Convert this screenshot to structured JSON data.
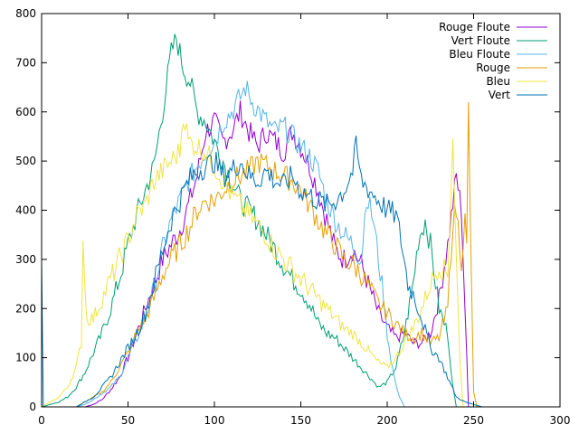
{
  "chart_data": {
    "type": "line",
    "title": "",
    "xlabel": "",
    "ylabel": "",
    "xlim": [
      0,
      300
    ],
    "ylim": [
      0,
      800
    ],
    "xticks": [
      0,
      50,
      100,
      150,
      200,
      250,
      300
    ],
    "yticks": [
      0,
      100,
      200,
      300,
      400,
      500,
      600,
      700,
      800
    ],
    "grid": false,
    "legend_position": "top-right",
    "series": [
      {
        "name": "Rouge Floute",
        "color": "#9400d3",
        "points": [
          [
            0,
            0
          ],
          [
            25,
            0
          ],
          [
            30,
            5
          ],
          [
            35,
            15
          ],
          [
            40,
            35
          ],
          [
            45,
            60
          ],
          [
            50,
            100
          ],
          [
            55,
            150
          ],
          [
            60,
            200
          ],
          [
            65,
            250
          ],
          [
            70,
            300
          ],
          [
            75,
            330
          ],
          [
            80,
            360
          ],
          [
            85,
            410
          ],
          [
            90,
            470
          ],
          [
            95,
            560
          ],
          [
            100,
            580
          ],
          [
            105,
            540
          ],
          [
            110,
            560
          ],
          [
            115,
            600
          ],
          [
            120,
            560
          ],
          [
            125,
            530
          ],
          [
            130,
            560
          ],
          [
            135,
            540
          ],
          [
            140,
            520
          ],
          [
            145,
            560
          ],
          [
            150,
            530
          ],
          [
            155,
            490
          ],
          [
            160,
            440
          ],
          [
            165,
            380
          ],
          [
            170,
            320
          ],
          [
            175,
            300
          ],
          [
            180,
            320
          ],
          [
            185,
            290
          ],
          [
            190,
            240
          ],
          [
            195,
            190
          ],
          [
            200,
            160
          ],
          [
            205,
            140
          ],
          [
            210,
            150
          ],
          [
            215,
            130
          ],
          [
            220,
            130
          ],
          [
            225,
            150
          ],
          [
            230,
            220
          ],
          [
            235,
            330
          ],
          [
            240,
            470
          ],
          [
            243,
            400
          ],
          [
            245,
            200
          ],
          [
            247,
            0
          ],
          [
            300,
            0
          ]
        ]
      },
      {
        "name": "Vert Floute",
        "color": "#009e73",
        "points": [
          [
            0,
            0
          ],
          [
            5,
            5
          ],
          [
            10,
            10
          ],
          [
            15,
            20
          ],
          [
            20,
            40
          ],
          [
            25,
            70
          ],
          [
            30,
            110
          ],
          [
            35,
            150
          ],
          [
            40,
            200
          ],
          [
            45,
            260
          ],
          [
            50,
            330
          ],
          [
            55,
            390
          ],
          [
            60,
            440
          ],
          [
            65,
            490
          ],
          [
            70,
            600
          ],
          [
            75,
            720
          ],
          [
            78,
            750
          ],
          [
            82,
            690
          ],
          [
            86,
            660
          ],
          [
            90,
            600
          ],
          [
            95,
            580
          ],
          [
            100,
            540
          ],
          [
            105,
            500
          ],
          [
            110,
            460
          ],
          [
            115,
            420
          ],
          [
            120,
            400
          ],
          [
            125,
            380
          ],
          [
            130,
            350
          ],
          [
            135,
            320
          ],
          [
            140,
            290
          ],
          [
            145,
            260
          ],
          [
            150,
            240
          ],
          [
            155,
            210
          ],
          [
            160,
            170
          ],
          [
            165,
            150
          ],
          [
            170,
            140
          ],
          [
            175,
            120
          ],
          [
            180,
            100
          ],
          [
            185,
            80
          ],
          [
            190,
            60
          ],
          [
            195,
            40
          ],
          [
            200,
            50
          ],
          [
            205,
            80
          ],
          [
            210,
            150
          ],
          [
            215,
            250
          ],
          [
            218,
            340
          ],
          [
            222,
            380
          ],
          [
            225,
            330
          ],
          [
            230,
            200
          ],
          [
            235,
            150
          ],
          [
            238,
            40
          ],
          [
            240,
            0
          ],
          [
            300,
            0
          ]
        ]
      },
      {
        "name": "Bleu Floute",
        "color": "#56b4e9",
        "points": [
          [
            0,
            0
          ],
          [
            20,
            0
          ],
          [
            25,
            5
          ],
          [
            30,
            15
          ],
          [
            40,
            40
          ],
          [
            45,
            60
          ],
          [
            50,
            100
          ],
          [
            55,
            140
          ],
          [
            60,
            180
          ],
          [
            65,
            240
          ],
          [
            70,
            320
          ],
          [
            75,
            380
          ],
          [
            80,
            420
          ],
          [
            85,
            460
          ],
          [
            90,
            490
          ],
          [
            95,
            520
          ],
          [
            100,
            540
          ],
          [
            105,
            580
          ],
          [
            110,
            600
          ],
          [
            115,
            630
          ],
          [
            118,
            650
          ],
          [
            122,
            620
          ],
          [
            126,
            600
          ],
          [
            130,
            580
          ],
          [
            135,
            560
          ],
          [
            140,
            570
          ],
          [
            145,
            550
          ],
          [
            150,
            530
          ],
          [
            155,
            510
          ],
          [
            160,
            480
          ],
          [
            165,
            420
          ],
          [
            170,
            380
          ],
          [
            175,
            350
          ],
          [
            180,
            330
          ],
          [
            185,
            300
          ],
          [
            188,
            430
          ],
          [
            192,
            380
          ],
          [
            195,
            300
          ],
          [
            198,
            220
          ],
          [
            200,
            150
          ],
          [
            203,
            80
          ],
          [
            206,
            30
          ],
          [
            210,
            0
          ],
          [
            300,
            0
          ]
        ]
      },
      {
        "name": "Rouge",
        "color": "#e69f00",
        "points": [
          [
            0,
            0
          ],
          [
            20,
            0
          ],
          [
            25,
            10
          ],
          [
            30,
            20
          ],
          [
            35,
            30
          ],
          [
            40,
            50
          ],
          [
            45,
            80
          ],
          [
            50,
            110
          ],
          [
            55,
            150
          ],
          [
            60,
            180
          ],
          [
            65,
            220
          ],
          [
            70,
            270
          ],
          [
            75,
            300
          ],
          [
            80,
            330
          ],
          [
            85,
            360
          ],
          [
            90,
            400
          ],
          [
            95,
            420
          ],
          [
            100,
            420
          ],
          [
            105,
            440
          ],
          [
            110,
            460
          ],
          [
            115,
            470
          ],
          [
            120,
            480
          ],
          [
            125,
            500
          ],
          [
            130,
            490
          ],
          [
            135,
            480
          ],
          [
            140,
            470
          ],
          [
            145,
            460
          ],
          [
            150,
            440
          ],
          [
            155,
            410
          ],
          [
            160,
            380
          ],
          [
            165,
            350
          ],
          [
            170,
            330
          ],
          [
            175,
            300
          ],
          [
            180,
            290
          ],
          [
            185,
            270
          ],
          [
            190,
            240
          ],
          [
            195,
            210
          ],
          [
            200,
            190
          ],
          [
            205,
            170
          ],
          [
            210,
            150
          ],
          [
            215,
            140
          ],
          [
            220,
            150
          ],
          [
            225,
            130
          ],
          [
            230,
            140
          ],
          [
            235,
            200
          ],
          [
            238,
            380
          ],
          [
            240,
            400
          ],
          [
            243,
            300
          ],
          [
            245,
            380
          ],
          [
            246,
            320
          ],
          [
            247,
            610
          ],
          [
            249,
            200
          ],
          [
            250,
            30
          ],
          [
            252,
            0
          ],
          [
            300,
            0
          ]
        ]
      },
      {
        "name": "Bleu",
        "color": "#f0e442",
        "points": [
          [
            0,
            0
          ],
          [
            5,
            10
          ],
          [
            10,
            20
          ],
          [
            15,
            40
          ],
          [
            20,
            80
          ],
          [
            23,
            130
          ],
          [
            24,
            340
          ],
          [
            26,
            180
          ],
          [
            30,
            180
          ],
          [
            35,
            220
          ],
          [
            40,
            260
          ],
          [
            45,
            300
          ],
          [
            50,
            340
          ],
          [
            55,
            390
          ],
          [
            60,
            410
          ],
          [
            65,
            460
          ],
          [
            70,
            480
          ],
          [
            75,
            500
          ],
          [
            80,
            520
          ],
          [
            82,
            600
          ],
          [
            85,
            540
          ],
          [
            90,
            530
          ],
          [
            95,
            520
          ],
          [
            100,
            490
          ],
          [
            105,
            460
          ],
          [
            110,
            430
          ],
          [
            115,
            410
          ],
          [
            120,
            390
          ],
          [
            125,
            370
          ],
          [
            130,
            350
          ],
          [
            135,
            320
          ],
          [
            140,
            300
          ],
          [
            145,
            280
          ],
          [
            150,
            260
          ],
          [
            155,
            240
          ],
          [
            160,
            220
          ],
          [
            165,
            200
          ],
          [
            170,
            180
          ],
          [
            175,
            160
          ],
          [
            180,
            150
          ],
          [
            185,
            130
          ],
          [
            190,
            110
          ],
          [
            195,
            90
          ],
          [
            200,
            80
          ],
          [
            205,
            100
          ],
          [
            210,
            130
          ],
          [
            215,
            160
          ],
          [
            220,
            200
          ],
          [
            225,
            250
          ],
          [
            230,
            290
          ],
          [
            235,
            270
          ],
          [
            238,
            550
          ],
          [
            240,
            300
          ],
          [
            242,
            100
          ],
          [
            244,
            0
          ],
          [
            300,
            0
          ]
        ]
      },
      {
        "name": "Vert",
        "color": "#0072b2",
        "points": [
          [
            0,
            300
          ],
          [
            1,
            0
          ],
          [
            20,
            0
          ],
          [
            25,
            10
          ],
          [
            30,
            20
          ],
          [
            35,
            40
          ],
          [
            40,
            60
          ],
          [
            45,
            90
          ],
          [
            50,
            120
          ],
          [
            55,
            150
          ],
          [
            60,
            190
          ],
          [
            65,
            250
          ],
          [
            70,
            320
          ],
          [
            75,
            380
          ],
          [
            80,
            420
          ],
          [
            85,
            460
          ],
          [
            90,
            480
          ],
          [
            95,
            490
          ],
          [
            100,
            500
          ],
          [
            105,
            470
          ],
          [
            110,
            480
          ],
          [
            115,
            500
          ],
          [
            120,
            470
          ],
          [
            125,
            460
          ],
          [
            130,
            480
          ],
          [
            135,
            460
          ],
          [
            140,
            450
          ],
          [
            145,
            470
          ],
          [
            150,
            440
          ],
          [
            155,
            430
          ],
          [
            160,
            420
          ],
          [
            165,
            410
          ],
          [
            170,
            420
          ],
          [
            175,
            440
          ],
          [
            180,
            480
          ],
          [
            182,
            530
          ],
          [
            185,
            460
          ],
          [
            190,
            440
          ],
          [
            195,
            420
          ],
          [
            200,
            400
          ],
          [
            205,
            390
          ],
          [
            208,
            340
          ],
          [
            212,
            250
          ],
          [
            215,
            230
          ],
          [
            220,
            180
          ],
          [
            225,
            120
          ],
          [
            230,
            100
          ],
          [
            235,
            60
          ],
          [
            240,
            20
          ],
          [
            245,
            10
          ],
          [
            250,
            5
          ],
          [
            255,
            0
          ],
          [
            300,
            0
          ]
        ]
      }
    ]
  }
}
